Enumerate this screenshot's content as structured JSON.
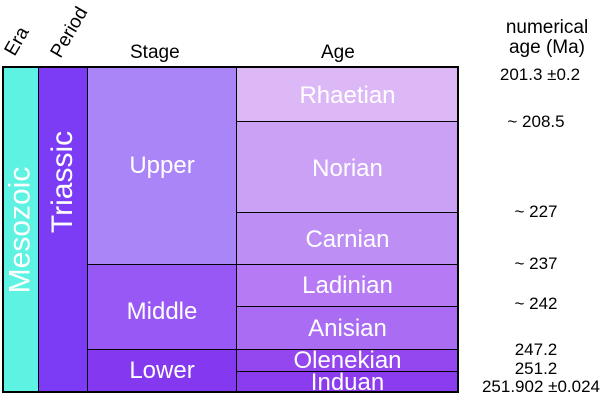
{
  "headers": {
    "era": "Era",
    "period": "Period",
    "stage": "Stage",
    "age": "Age",
    "numerical_line1": "numerical",
    "numerical_line2": "age (Ma)"
  },
  "era": {
    "name": "Mesozoic",
    "color": "#5ef2e2"
  },
  "period": {
    "name": "Triassic",
    "color": "#7c3cf5"
  },
  "stages": [
    {
      "name": "Upper",
      "color": "#aa85f7"
    },
    {
      "name": "Middle",
      "color": "#9858f5"
    },
    {
      "name": "Lower",
      "color": "#8439f0"
    }
  ],
  "ages": [
    {
      "name": "Rhaetian",
      "color": "#ddb8f6"
    },
    {
      "name": "Norian",
      "color": "#caa1f5"
    },
    {
      "name": "Carnian",
      "color": "#bd8ef4"
    },
    {
      "name": "Ladinian",
      "color": "#b57af4"
    },
    {
      "name": "Anisian",
      "color": "#a96cf3"
    },
    {
      "name": "Olenekian",
      "color": "#9446ef"
    },
    {
      "name": "Induan",
      "color": "#8c3cef"
    }
  ],
  "numerical_ages": [
    "201.3 ±0.2",
    "~ 208.5",
    "~ 227",
    "~ 237",
    "~ 242",
    "247.2",
    "251.2",
    "251.902 ±0.024"
  ]
}
